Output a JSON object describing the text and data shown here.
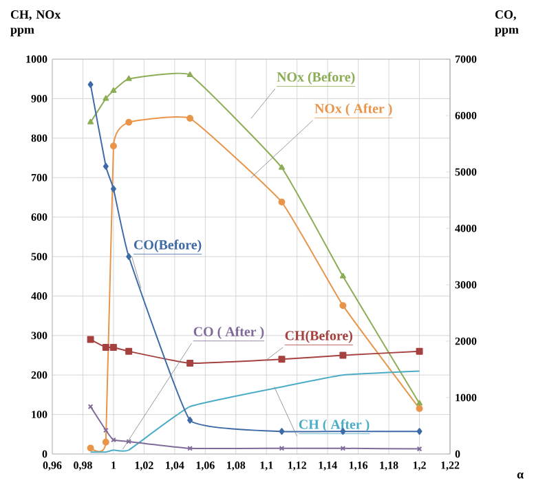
{
  "chart_data": {
    "type": "line",
    "ylabel": "CH, NOx ppm",
    "y2label": "CO, ppm",
    "xlabel": "α",
    "xlim": [
      0.96,
      1.22
    ],
    "xticks": [
      {
        "value": 0.96,
        "label": "0,96"
      },
      {
        "value": 0.98,
        "label": "0,98"
      },
      {
        "value": 1,
        "label": "1"
      },
      {
        "value": 1.02,
        "label": "1,02"
      },
      {
        "value": 1.04,
        "label": "1,04"
      },
      {
        "value": 1.06,
        "label": "1,06"
      },
      {
        "value": 1.08,
        "label": "1,08"
      },
      {
        "value": 1.1,
        "label": "1,1"
      },
      {
        "value": 1.12,
        "label": "1,12"
      },
      {
        "value": 1.14,
        "label": "1,14"
      },
      {
        "value": 1.16,
        "label": "1,16"
      },
      {
        "value": 1.18,
        "label": "1,18"
      },
      {
        "value": 1.2,
        "label": "1,2"
      },
      {
        "value": 1.22,
        "label": "1,22"
      }
    ],
    "ylim": [
      0,
      1000
    ],
    "yticks": [
      0,
      100,
      200,
      300,
      400,
      500,
      600,
      700,
      800,
      900,
      1000
    ],
    "y2lim": [
      0,
      7000
    ],
    "y2ticks": [
      0,
      1000,
      2000,
      3000,
      4000,
      5000,
      6000,
      7000
    ],
    "grid": true,
    "x": [
      0.985,
      0.995,
      1.0,
      1.01,
      1.05,
      1.11,
      1.15,
      1.2
    ],
    "series": [
      {
        "name": "NOx (Before)",
        "color": "#8cad55",
        "marker": "triangle",
        "values": [
          840,
          900,
          920,
          950,
          960,
          725,
          450,
          128
        ]
      },
      {
        "name": "NOx ( After )",
        "color": "#e8954a",
        "marker": "circle",
        "values": [
          15,
          30,
          780,
          840,
          850,
          638,
          376,
          115
        ]
      },
      {
        "name": "CO(Before)",
        "color": "#3e6aa8",
        "marker": "diamond",
        "axis": "y2",
        "values": [
          6550,
          5100,
          4700,
          3500,
          600,
          400,
          400,
          400
        ]
      },
      {
        "name": "CO ( After )",
        "color": "#7f6a9a",
        "marker": "cross",
        "axis": "y2",
        "values": [
          840,
          420,
          250,
          220,
          100,
          100,
          100,
          90
        ]
      },
      {
        "name": "CH(Before)",
        "color": "#a5413e",
        "marker": "square",
        "values": [
          290,
          270,
          270,
          260,
          230,
          240,
          250,
          260
        ]
      },
      {
        "name": "CH ( After )",
        "color": "#4bacc6",
        "marker": "none",
        "values": [
          5,
          5,
          10,
          10,
          120,
          170,
          200,
          210
        ]
      }
    ]
  }
}
